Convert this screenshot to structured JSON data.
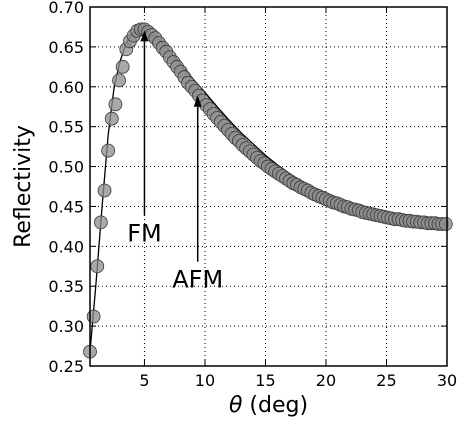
{
  "chart_data": {
    "type": "scatter",
    "title": "",
    "xlabel_symbol": "θ",
    "xlabel_rest": " (deg)",
    "ylabel": "Reflectivity",
    "xlim": [
      0.5,
      30
    ],
    "ylim": [
      0.25,
      0.7
    ],
    "xticks": [
      5,
      10,
      15,
      20,
      25,
      30
    ],
    "yticks": [
      0.25,
      0.3,
      0.35,
      0.4,
      0.45,
      0.5,
      0.55,
      0.6,
      0.65,
      0.7
    ],
    "xtick_labels": [
      "5",
      "10",
      "15",
      "20",
      "25",
      "30"
    ],
    "ytick_labels": [
      "0.25",
      "0.30",
      "0.35",
      "0.40",
      "0.45",
      "0.50",
      "0.55",
      "0.60",
      "0.65",
      "0.70"
    ],
    "grid": true,
    "grid_style": "dotted",
    "marker_color": "#8c8c8c",
    "line_color": "#000000",
    "points": {
      "x": [
        0.5,
        0.8,
        1.1,
        1.4,
        1.7,
        2.0,
        2.3,
        2.6,
        2.9,
        3.2,
        3.5,
        3.8,
        4.1,
        4.4,
        4.7,
        5.0,
        5.3,
        5.6,
        5.9,
        6.2,
        6.5,
        6.8,
        7.1,
        7.4,
        7.7,
        8.0,
        8.3,
        8.6,
        8.9,
        9.2,
        9.5,
        9.8,
        10.1,
        10.4,
        10.7,
        11.0,
        11.3,
        11.6,
        11.9,
        12.2,
        12.5,
        12.8,
        13.1,
        13.4,
        13.7,
        14.0,
        14.3,
        14.6,
        14.9,
        15.2,
        15.5,
        15.8,
        16.1,
        16.4,
        16.7,
        17.0,
        17.3,
        17.6,
        17.9,
        18.2,
        18.5,
        18.8,
        19.1,
        19.4,
        19.7,
        20.0,
        20.3,
        20.6,
        20.9,
        21.2,
        21.5,
        21.8,
        22.1,
        22.4,
        22.7,
        23.0,
        23.3,
        23.6,
        23.9,
        24.2,
        24.5,
        24.8,
        25.1,
        25.4,
        25.7,
        26.0,
        26.3,
        26.6,
        26.9,
        27.2,
        27.5,
        27.8,
        28.1,
        28.4,
        28.7,
        29.0,
        29.3,
        29.6,
        29.9
      ],
      "y": [
        0.268,
        0.312,
        0.375,
        0.43,
        0.47,
        0.52,
        0.56,
        0.578,
        0.608,
        0.625,
        0.647,
        0.657,
        0.664,
        0.67,
        0.672,
        0.672,
        0.669,
        0.665,
        0.661,
        0.655,
        0.649,
        0.644,
        0.637,
        0.631,
        0.625,
        0.619,
        0.612,
        0.605,
        0.6,
        0.595,
        0.589,
        0.583,
        0.577,
        0.572,
        0.566,
        0.561,
        0.556,
        0.551,
        0.546,
        0.541,
        0.536,
        0.532,
        0.527,
        0.523,
        0.519,
        0.515,
        0.511,
        0.507,
        0.504,
        0.5,
        0.497,
        0.494,
        0.491,
        0.488,
        0.485,
        0.482,
        0.479,
        0.477,
        0.474,
        0.472,
        0.47,
        0.467,
        0.465,
        0.463,
        0.461,
        0.459,
        0.457,
        0.455,
        0.454,
        0.452,
        0.45,
        0.449,
        0.447,
        0.446,
        0.445,
        0.443,
        0.442,
        0.441,
        0.44,
        0.439,
        0.438,
        0.437,
        0.436,
        0.435,
        0.434,
        0.434,
        0.433,
        0.432,
        0.432,
        0.431,
        0.431,
        0.43,
        0.43,
        0.429,
        0.429,
        0.429,
        0.428,
        0.428,
        0.428
      ]
    },
    "fit_line": {
      "x": [
        0.5,
        1.0,
        1.5,
        2.0,
        2.5,
        3.0,
        3.5,
        4.0,
        4.5,
        5.0,
        5.5,
        6.0,
        7.0,
        8.0,
        9.0,
        10.0,
        11.0,
        12.0,
        13.0,
        14.0,
        15.0,
        16.0,
        17.0,
        18.0,
        19.0,
        20.0,
        21.0,
        22.0,
        23.0,
        24.0,
        25.0,
        26.0,
        27.0,
        28.0,
        29.0,
        30.0
      ],
      "y": [
        0.268,
        0.355,
        0.45,
        0.54,
        0.6,
        0.633,
        0.655,
        0.666,
        0.671,
        0.672,
        0.668,
        0.662,
        0.646,
        0.628,
        0.61,
        0.593,
        0.575,
        0.558,
        0.542,
        0.528,
        0.514,
        0.502,
        0.491,
        0.481,
        0.472,
        0.464,
        0.457,
        0.451,
        0.446,
        0.441,
        0.437,
        0.434,
        0.431,
        0.429,
        0.427,
        0.426
      ]
    },
    "annotations": [
      {
        "text": "FM",
        "arrow_to": [
          5.0,
          0.672
        ],
        "text_at": [
          5.0,
          0.415
        ]
      },
      {
        "text": "AFM",
        "arrow_to": [
          9.4,
          0.59
        ],
        "text_at": [
          9.4,
          0.357
        ]
      }
    ]
  }
}
